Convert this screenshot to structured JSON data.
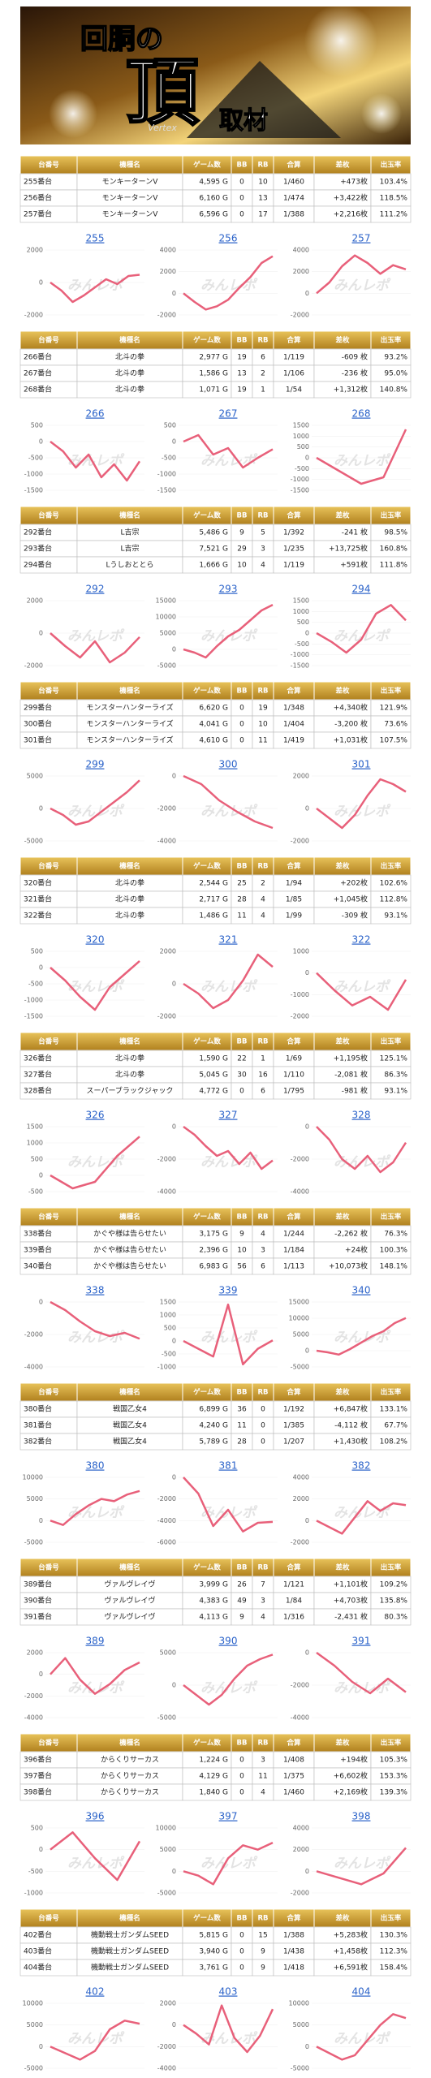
{
  "banner": {
    "title_top": "回胴の",
    "title_main": "頂",
    "subtitle": "取材",
    "vertex": "Vertex"
  },
  "watermark": "みんレポ",
  "columns": [
    "台番号",
    "機種名",
    "ゲーム数",
    "BB",
    "RB",
    "合算",
    "差枚",
    "出玉率"
  ],
  "tables": [
    [
      [
        "255番台",
        "モンキーターンV",
        "4,595 G",
        "0",
        "10",
        "1/460",
        "+473枚",
        "103.4%"
      ],
      [
        "256番台",
        "モンキーターンV",
        "6,160 G",
        "0",
        "13",
        "1/474",
        "+3,422枚",
        "118.5%"
      ],
      [
        "257番台",
        "モンキーターンV",
        "6,596 G",
        "0",
        "17",
        "1/388",
        "+2,216枚",
        "111.2%"
      ]
    ],
    [
      [
        "266番台",
        "北斗の拳",
        "2,977 G",
        "19",
        "6",
        "1/119",
        "-609 枚",
        "93.2%"
      ],
      [
        "267番台",
        "北斗の拳",
        "1,586 G",
        "13",
        "2",
        "1/106",
        "-236 枚",
        "95.0%"
      ],
      [
        "268番台",
        "北斗の拳",
        "1,071 G",
        "19",
        "1",
        "1/54",
        "+1,312枚",
        "140.8%"
      ]
    ],
    [
      [
        "292番台",
        "L吉宗",
        "5,486 G",
        "9",
        "5",
        "1/392",
        "-241 枚",
        "98.5%"
      ],
      [
        "293番台",
        "L吉宗",
        "7,521 G",
        "29",
        "3",
        "1/235",
        "+13,725枚",
        "160.8%"
      ],
      [
        "294番台",
        "Lうしおととら",
        "1,666 G",
        "10",
        "4",
        "1/119",
        "+591枚",
        "111.8%"
      ]
    ],
    [
      [
        "299番台",
        "モンスターハンターライズ",
        "6,620 G",
        "0",
        "19",
        "1/348",
        "+4,340枚",
        "121.9%"
      ],
      [
        "300番台",
        "モンスターハンターライズ",
        "4,041 G",
        "0",
        "10",
        "1/404",
        "-3,200 枚",
        "73.6%"
      ],
      [
        "301番台",
        "モンスターハンターライズ",
        "4,610 G",
        "0",
        "11",
        "1/419",
        "+1,031枚",
        "107.5%"
      ]
    ],
    [
      [
        "320番台",
        "北斗の拳",
        "2,544 G",
        "25",
        "2",
        "1/94",
        "+202枚",
        "102.6%"
      ],
      [
        "321番台",
        "北斗の拳",
        "2,717 G",
        "28",
        "4",
        "1/85",
        "+1,045枚",
        "112.8%"
      ],
      [
        "322番台",
        "北斗の拳",
        "1,486 G",
        "11",
        "4",
        "1/99",
        "-309 枚",
        "93.1%"
      ]
    ],
    [
      [
        "326番台",
        "北斗の拳",
        "1,590 G",
        "22",
        "1",
        "1/69",
        "+1,195枚",
        "125.1%"
      ],
      [
        "327番台",
        "北斗の拳",
        "5,045 G",
        "30",
        "16",
        "1/110",
        "-2,081 枚",
        "86.3%"
      ],
      [
        "328番台",
        "スーパーブラックジャック",
        "4,772 G",
        "0",
        "6",
        "1/795",
        "-981 枚",
        "93.1%"
      ]
    ],
    [
      [
        "338番台",
        "かぐや様は告らせたい",
        "3,175 G",
        "9",
        "4",
        "1/244",
        "-2,262 枚",
        "76.3%"
      ],
      [
        "339番台",
        "かぐや様は告らせたい",
        "2,396 G",
        "10",
        "3",
        "1/184",
        "+24枚",
        "100.3%"
      ],
      [
        "340番台",
        "かぐや様は告らせたい",
        "6,983 G",
        "56",
        "6",
        "1/113",
        "+10,073枚",
        "148.1%"
      ]
    ],
    [
      [
        "380番台",
        "戦国乙女4",
        "6,899 G",
        "36",
        "0",
        "1/192",
        "+6,847枚",
        "133.1%"
      ],
      [
        "381番台",
        "戦国乙女4",
        "4,240 G",
        "11",
        "0",
        "1/385",
        "-4,112 枚",
        "67.7%"
      ],
      [
        "382番台",
        "戦国乙女4",
        "5,789 G",
        "28",
        "0",
        "1/207",
        "+1,430枚",
        "108.2%"
      ]
    ],
    [
      [
        "389番台",
        "ヴァルヴレイヴ",
        "3,999 G",
        "26",
        "7",
        "1/121",
        "+1,101枚",
        "109.2%"
      ],
      [
        "390番台",
        "ヴァルヴレイヴ",
        "4,383 G",
        "49",
        "3",
        "1/84",
        "+4,703枚",
        "135.8%"
      ],
      [
        "391番台",
        "ヴァルヴレイヴ",
        "4,113 G",
        "9",
        "4",
        "1/316",
        "-2,431 枚",
        "80.3%"
      ]
    ],
    [
      [
        "396番台",
        "からくりサーカス",
        "1,224 G",
        "0",
        "3",
        "1/408",
        "+194枚",
        "105.3%"
      ],
      [
        "397番台",
        "からくりサーカス",
        "4,129 G",
        "0",
        "11",
        "1/375",
        "+6,602枚",
        "153.3%"
      ],
      [
        "398番台",
        "からくりサーカス",
        "1,840 G",
        "0",
        "4",
        "1/460",
        "+2,169枚",
        "139.3%"
      ]
    ],
    [
      [
        "402番台",
        "機動戦士ガンダムSEED",
        "5,815 G",
        "0",
        "15",
        "1/388",
        "+5,283枚",
        "130.3%"
      ],
      [
        "403番台",
        "機動戦士ガンダムSEED",
        "3,940 G",
        "0",
        "9",
        "1/438",
        "+1,458枚",
        "112.3%"
      ],
      [
        "404番台",
        "機動戦士ガンダムSEED",
        "3,761 G",
        "0",
        "9",
        "1/418",
        "+6,591枚",
        "158.4%"
      ]
    ]
  ],
  "chart_data": [
    {
      "type": "line",
      "title": "255",
      "color": "#e8607a",
      "ylim": [
        -2000,
        2000
      ],
      "yticks": [
        2000,
        0,
        -2000
      ],
      "values": [
        0,
        -500,
        -1200,
        -800,
        -300,
        200,
        -100,
        400,
        473
      ]
    },
    {
      "type": "line",
      "title": "256",
      "color": "#e8607a",
      "ylim": [
        -2000,
        4000
      ],
      "yticks": [
        4000,
        2000,
        0,
        -2000
      ],
      "values": [
        0,
        -800,
        -1500,
        -1200,
        -600,
        500,
        1500,
        2800,
        3422
      ]
    },
    {
      "type": "line",
      "title": "257",
      "color": "#e8607a",
      "ylim": [
        -2000,
        4000
      ],
      "yticks": [
        4000,
        2000,
        0,
        -2000
      ],
      "values": [
        0,
        1000,
        2500,
        3500,
        2800,
        1800,
        2600,
        2216
      ]
    },
    {
      "type": "line",
      "title": "266",
      "color": "#e8607a",
      "ylim": [
        -1500,
        500
      ],
      "yticks": [
        500,
        0,
        -500,
        -1000,
        -1500
      ],
      "values": [
        0,
        -300,
        -800,
        -400,
        -1100,
        -700,
        -1200,
        -609
      ]
    },
    {
      "type": "line",
      "title": "267",
      "color": "#e8607a",
      "ylim": [
        -1500,
        500
      ],
      "yticks": [
        500,
        0,
        -500,
        -1000,
        -1500
      ],
      "values": [
        0,
        200,
        -400,
        -200,
        -800,
        -500,
        -236
      ]
    },
    {
      "type": "line",
      "title": "268",
      "color": "#e8607a",
      "ylim": [
        -1500,
        1500
      ],
      "yticks": [
        1500,
        1000,
        500,
        0,
        -500,
        -1000,
        -1500
      ],
      "values": [
        0,
        -600,
        -1200,
        -900,
        1312
      ]
    },
    {
      "type": "line",
      "title": "292",
      "color": "#e8607a",
      "ylim": [
        -2000,
        2000
      ],
      "yticks": [
        2000,
        0,
        -2000
      ],
      "values": [
        0,
        -800,
        -1500,
        -500,
        -1800,
        -1200,
        -241
      ]
    },
    {
      "type": "line",
      "title": "293",
      "color": "#e8607a",
      "ylim": [
        -5000,
        15000
      ],
      "yticks": [
        15000,
        10000,
        5000,
        0,
        -5000
      ],
      "values": [
        0,
        -1000,
        -2500,
        1000,
        4000,
        6000,
        9000,
        12000,
        13725
      ]
    },
    {
      "type": "line",
      "title": "294",
      "color": "#e8607a",
      "ylim": [
        -1500,
        1500
      ],
      "yticks": [
        1500,
        1000,
        500,
        0,
        -500,
        -1000,
        -1500
      ],
      "values": [
        0,
        -400,
        -900,
        -300,
        900,
        1300,
        591
      ]
    },
    {
      "type": "line",
      "title": "299",
      "color": "#e8607a",
      "ylim": [
        -5000,
        5000
      ],
      "yticks": [
        5000,
        0,
        -5000
      ],
      "values": [
        0,
        -1000,
        -2500,
        -2000,
        -500,
        1000,
        2500,
        4340
      ]
    },
    {
      "type": "line",
      "title": "300",
      "color": "#e8607a",
      "ylim": [
        -4000,
        0
      ],
      "yticks": [
        0,
        -2000,
        -4000
      ],
      "values": [
        0,
        -500,
        -1500,
        -2200,
        -2800,
        -3200
      ]
    },
    {
      "type": "line",
      "title": "301",
      "color": "#e8607a",
      "ylim": [
        -2000,
        2000
      ],
      "yticks": [
        2000,
        0,
        -2000
      ],
      "values": [
        0,
        -600,
        -1200,
        -400,
        800,
        1800,
        1500,
        1031
      ]
    },
    {
      "type": "line",
      "title": "320",
      "color": "#e8607a",
      "ylim": [
        -1500,
        500
      ],
      "yticks": [
        500,
        0,
        -500,
        -1000,
        -1500
      ],
      "values": [
        0,
        -400,
        -900,
        -1300,
        -600,
        -200,
        202
      ]
    },
    {
      "type": "line",
      "title": "321",
      "color": "#e8607a",
      "ylim": [
        -2000,
        2000
      ],
      "yticks": [
        2000,
        0,
        -2000
      ],
      "values": [
        0,
        -600,
        -1500,
        -1000,
        200,
        1800,
        1045
      ]
    },
    {
      "type": "line",
      "title": "322",
      "color": "#e8607a",
      "ylim": [
        -2000,
        1000
      ],
      "yticks": [
        1000,
        0,
        -1000,
        -2000
      ],
      "values": [
        0,
        -800,
        -1500,
        -1100,
        -1700,
        -309
      ]
    },
    {
      "type": "line",
      "title": "326",
      "color": "#e8607a",
      "ylim": [
        -500,
        1500
      ],
      "yticks": [
        1500,
        1000,
        500,
        0,
        -500
      ],
      "values": [
        0,
        -400,
        -200,
        600,
        1195
      ]
    },
    {
      "type": "line",
      "title": "327",
      "color": "#e8607a",
      "ylim": [
        -4000,
        0
      ],
      "yticks": [
        0,
        -2000,
        -4000
      ],
      "values": [
        0,
        -500,
        -1200,
        -1800,
        -1500,
        -2300,
        -1600,
        -2600,
        -2081
      ]
    },
    {
      "type": "line",
      "title": "328",
      "color": "#e8607a",
      "ylim": [
        -4000,
        0
      ],
      "yticks": [
        0,
        -2000,
        -4000
      ],
      "values": [
        0,
        -800,
        -2000,
        -2600,
        -1800,
        -2800,
        -2200,
        -981
      ]
    },
    {
      "type": "line",
      "title": "338",
      "color": "#e8607a",
      "ylim": [
        -4000,
        0
      ],
      "yticks": [
        0,
        -2000,
        -4000
      ],
      "values": [
        0,
        -500,
        -1200,
        -1800,
        -2100,
        -1900,
        -2262
      ]
    },
    {
      "type": "line",
      "title": "339",
      "color": "#e8607a",
      "ylim": [
        -1000,
        1500
      ],
      "yticks": [
        1500,
        1000,
        500,
        0,
        -500,
        -1000
      ],
      "values": [
        0,
        -300,
        -600,
        1400,
        -900,
        -300,
        24
      ]
    },
    {
      "type": "line",
      "title": "340",
      "color": "#e8607a",
      "ylim": [
        -5000,
        15000
      ],
      "yticks": [
        15000,
        10000,
        5000,
        0,
        -5000
      ],
      "values": [
        0,
        -500,
        -1200,
        500,
        2500,
        4500,
        6000,
        8500,
        10073
      ]
    },
    {
      "type": "line",
      "title": "380",
      "color": "#e8607a",
      "ylim": [
        -5000,
        10000
      ],
      "yticks": [
        10000,
        5000,
        0,
        -5000
      ],
      "values": [
        0,
        -1000,
        1500,
        3500,
        5000,
        4500,
        6000,
        6847
      ]
    },
    {
      "type": "line",
      "title": "381",
      "color": "#e8607a",
      "ylim": [
        -6000,
        0
      ],
      "yticks": [
        0,
        -2000,
        -4000,
        -6000
      ],
      "values": [
        0,
        -1500,
        -4500,
        -3000,
        -5000,
        -4200,
        -4112
      ]
    },
    {
      "type": "line",
      "title": "382",
      "color": "#e8607a",
      "ylim": [
        -2000,
        4000
      ],
      "yticks": [
        4000,
        2000,
        0,
        -2000
      ],
      "values": [
        0,
        -600,
        -1200,
        300,
        1800,
        900,
        1600,
        1430
      ]
    },
    {
      "type": "line",
      "title": "389",
      "color": "#e8607a",
      "ylim": [
        -4000,
        2000
      ],
      "yticks": [
        2000,
        0,
        -2000,
        -4000
      ],
      "values": [
        0,
        1500,
        -500,
        -1800,
        -900,
        400,
        1101
      ]
    },
    {
      "type": "line",
      "title": "390",
      "color": "#e8607a",
      "ylim": [
        -5000,
        5000
      ],
      "yticks": [
        5000,
        0,
        -5000
      ],
      "values": [
        0,
        -1500,
        -3000,
        -1500,
        1000,
        3000,
        4000,
        4703
      ]
    },
    {
      "type": "line",
      "title": "391",
      "color": "#e8607a",
      "ylim": [
        -4000,
        0
      ],
      "yticks": [
        0,
        -2000,
        -4000
      ],
      "values": [
        0,
        -800,
        -1800,
        -2500,
        -1600,
        -2431
      ]
    },
    {
      "type": "line",
      "title": "396",
      "color": "#e8607a",
      "ylim": [
        -1000,
        500
      ],
      "yticks": [
        500,
        0,
        -500,
        -1000
      ],
      "values": [
        0,
        400,
        -200,
        -700,
        194
      ]
    },
    {
      "type": "line",
      "title": "397",
      "color": "#e8607a",
      "ylim": [
        -5000,
        10000
      ],
      "yticks": [
        10000,
        5000,
        0,
        -5000
      ],
      "values": [
        0,
        -1000,
        -3000,
        3000,
        6000,
        5000,
        6602
      ]
    },
    {
      "type": "line",
      "title": "398",
      "color": "#e8607a",
      "ylim": [
        -2000,
        4000
      ],
      "yticks": [
        4000,
        2000,
        0,
        -2000
      ],
      "values": [
        0,
        -600,
        -1200,
        -200,
        2169
      ]
    },
    {
      "type": "line",
      "title": "402",
      "color": "#e8607a",
      "ylim": [
        -5000,
        10000
      ],
      "yticks": [
        10000,
        5000,
        0,
        -5000
      ],
      "values": [
        0,
        -1500,
        -3000,
        -1000,
        4000,
        6000,
        5283
      ]
    },
    {
      "type": "line",
      "title": "403",
      "color": "#e8607a",
      "ylim": [
        -4000,
        2000
      ],
      "yticks": [
        2000,
        0,
        -2000,
        -4000
      ],
      "values": [
        0,
        -800,
        -1800,
        1800,
        -1200,
        -2500,
        -1000,
        1458
      ]
    },
    {
      "type": "line",
      "title": "404",
      "color": "#e8607a",
      "ylim": [
        -5000,
        10000
      ],
      "yticks": [
        10000,
        5000,
        0,
        -5000
      ],
      "values": [
        0,
        -1500,
        -3000,
        -2000,
        1500,
        5000,
        7500,
        6591
      ]
    }
  ]
}
